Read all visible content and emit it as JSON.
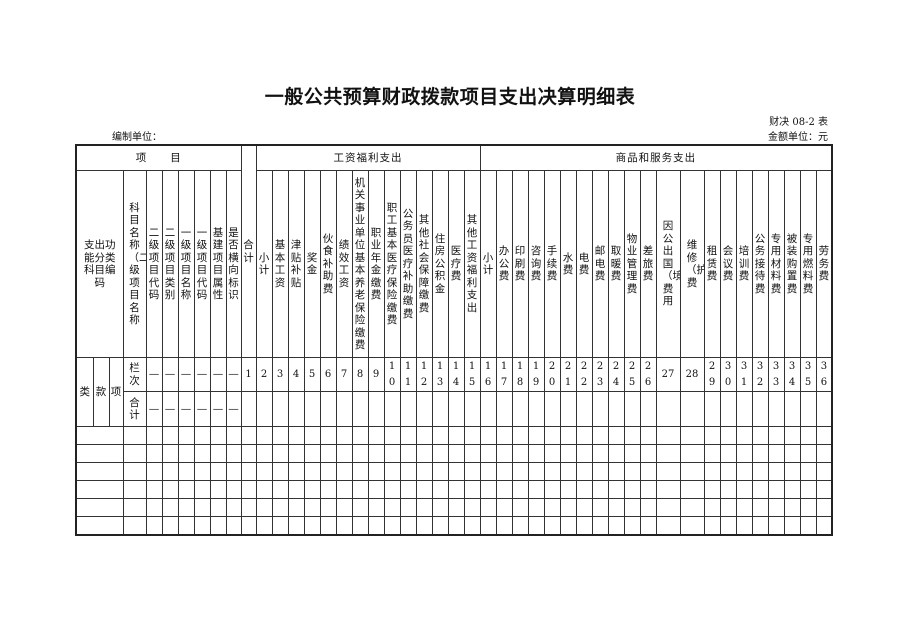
{
  "title": "一般公共预算财政拨款项目支出决算明细表",
  "form_code": "财决 08-2 表",
  "unit_label": "编制单位：",
  "amount_unit": "金额单位：元",
  "header": {
    "project_group": "项　　目",
    "wage_group": "工资福利支出",
    "goods_group": "商品和服务支出",
    "func_code": "支出功能分类科目编码",
    "subject_name": "科目名称（二级项目名称",
    "total": "合计",
    "project_cols": [
      "二级项目代码",
      "二级项目类别",
      "一级项目名称",
      "一级项目代码",
      "基建项目属性",
      "是否横向标识"
    ]
  },
  "wage_cols": [
    {
      "label": "小计",
      "line": "2"
    },
    {
      "label": "基本工资",
      "line": "3"
    },
    {
      "label": "津贴补贴",
      "line": "4"
    },
    {
      "label": "奖金",
      "line": "5"
    },
    {
      "label": "伙食补助费",
      "line": "6"
    },
    {
      "label": "绩效工资",
      "line": "7"
    },
    {
      "label": "机关事业单位基本养老保险缴费",
      "line": "8"
    },
    {
      "label": "职业年金缴费",
      "line": "9"
    },
    {
      "label": "职工基本医疗保险缴费",
      "line": "10"
    },
    {
      "label": "公务员医疗补助缴费",
      "line": "11"
    },
    {
      "label": "其他社会保障缴费",
      "line": "12"
    },
    {
      "label": "住房公积金",
      "line": "13"
    },
    {
      "label": "医疗费",
      "line": "14"
    },
    {
      "label": "其他工资福利支出",
      "line": "15"
    }
  ],
  "goods_cols": [
    {
      "label": "小计",
      "line": "16"
    },
    {
      "label": "办公费",
      "line": "17"
    },
    {
      "label": "印刷费",
      "line": "18"
    },
    {
      "label": "咨询费",
      "line": "19"
    },
    {
      "label": "手续费",
      "line": "20"
    },
    {
      "label": "水费",
      "line": "21"
    },
    {
      "label": "电费",
      "line": "22"
    },
    {
      "label": "邮电费",
      "line": "23"
    },
    {
      "label": "取暖费",
      "line": "24"
    },
    {
      "label": "物业管理费",
      "line": "25"
    },
    {
      "label": "差旅费",
      "line": "26"
    },
    {
      "label": "因公出国（境）费用",
      "line": "27",
      "wide": true
    },
    {
      "label": "维修（护）费",
      "line": "28",
      "wide": true
    },
    {
      "label": "租赁费",
      "line": "29"
    },
    {
      "label": "会议费",
      "line": "30"
    },
    {
      "label": "培训费",
      "line": "31"
    },
    {
      "label": "公务接待费",
      "line": "32"
    },
    {
      "label": "专用材料费",
      "line": "33"
    },
    {
      "label": "被装购置费",
      "line": "34"
    },
    {
      "label": "专用燃料费",
      "line": "35"
    },
    {
      "label": "劳务费",
      "line": "36"
    }
  ],
  "rows": {
    "lei": "类",
    "kuan": "款",
    "xiang": "项",
    "line_label": "栏次",
    "total_label": "合计",
    "total_line": "1",
    "dash": "—",
    "empty_row_count": 6
  }
}
